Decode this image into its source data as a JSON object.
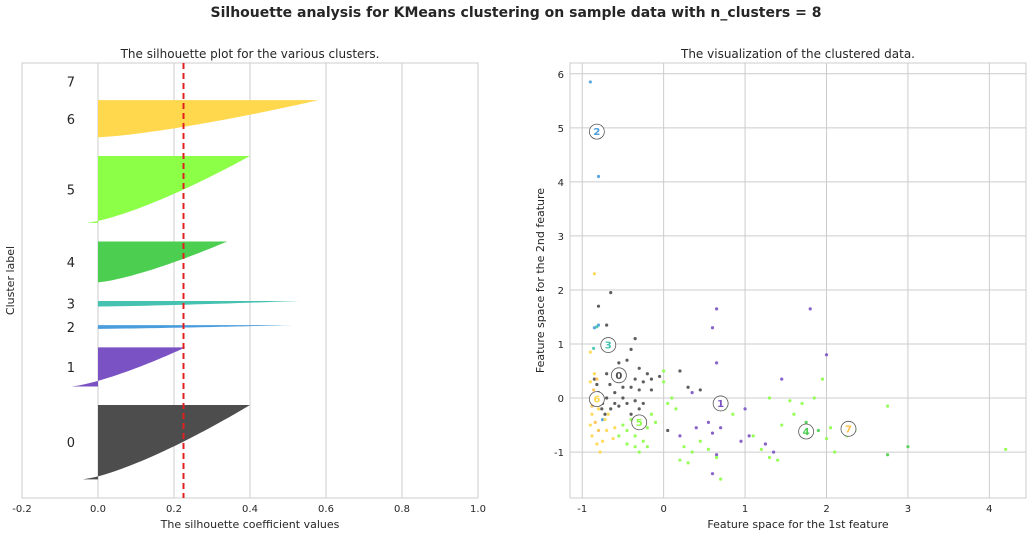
{
  "suptitle": "Silhouette analysis for KMeans clustering on sample data with n_clusters = 8",
  "chart_data": [
    {
      "type": "silhouette",
      "title": "The silhouette plot for the various clusters.",
      "xlabel": "The silhouette coefficient values",
      "ylabel": "Cluster label",
      "xlim": [
        -0.2,
        1.0
      ],
      "xticks": [
        -0.2,
        0.0,
        0.2,
        0.4,
        0.6,
        0.8,
        1.0
      ],
      "xtick_labels": [
        "-0.2",
        "0.0",
        "0.2",
        "0.4",
        "0.6",
        "0.8",
        "1.0"
      ],
      "average_silhouette": 0.225,
      "clusters": [
        {
          "label": "0",
          "color": "#4d4d4d",
          "max": 0.4,
          "min": -0.04,
          "size": 40
        },
        {
          "label": "1",
          "color": "#7b52c4",
          "max": 0.23,
          "min": -0.07,
          "size": 21
        },
        {
          "label": "2",
          "color": "#4a9ddd",
          "max": 0.51,
          "min": 0.0,
          "size": 2
        },
        {
          "label": "3",
          "color": "#47c2b1",
          "max": 0.53,
          "min": 0.0,
          "size": 3
        },
        {
          "label": "4",
          "color": "#4ccf50",
          "max": 0.34,
          "min": 0.0,
          "size": 22
        },
        {
          "label": "5",
          "color": "#8cff47",
          "max": 0.4,
          "min": -0.03,
          "size": 36
        },
        {
          "label": "6",
          "color": "#ffd84d",
          "max": 0.58,
          "min": 0.0,
          "size": 20
        },
        {
          "label": "7",
          "color": "#ffc04d",
          "max": 0.0,
          "min": 0.0,
          "size": 0
        }
      ]
    },
    {
      "type": "scatter",
      "title": "The visualization of the clustered data.",
      "xlabel": "Feature space for the 1st feature",
      "ylabel": "Feature space for the 2nd feature",
      "xlim": [
        -1.15,
        4.45
      ],
      "ylim": [
        -1.85,
        6.2
      ],
      "xticks": [
        -1,
        0,
        1,
        2,
        3,
        4
      ],
      "xtick_labels": [
        "-1",
        "0",
        "1",
        "2",
        "3",
        "4"
      ],
      "yticks": [
        -1,
        0,
        1,
        2,
        3,
        4,
        5,
        6
      ],
      "ytick_labels": [
        "-1",
        "0",
        "1",
        "2",
        "3",
        "4",
        "5",
        "6"
      ],
      "colors": [
        "#4d4d4d",
        "#7b52c4",
        "#4a9ddd",
        "#47c2b1",
        "#4ccf50",
        "#8cff47",
        "#ffd84d",
        "#ffc04d"
      ],
      "points": [
        [
          -0.9,
          5.85,
          2
        ],
        [
          -0.8,
          4.1,
          2
        ],
        [
          -0.85,
          1.3,
          2
        ],
        [
          -0.8,
          1.35,
          2
        ],
        [
          -0.75,
          -0.4,
          2
        ],
        [
          -0.82,
          1.32,
          3
        ],
        [
          -0.86,
          0.92,
          3
        ],
        [
          -0.75,
          1.0,
          3
        ],
        [
          -0.65,
          1.95,
          0
        ],
        [
          -0.8,
          1.7,
          0
        ],
        [
          -0.7,
          1.35,
          0
        ],
        [
          -0.35,
          1.1,
          0
        ],
        [
          -0.4,
          0.9,
          0
        ],
        [
          -0.45,
          0.7,
          0
        ],
        [
          -0.55,
          0.65,
          0
        ],
        [
          -0.6,
          0.5,
          0
        ],
        [
          -0.7,
          0.45,
          0
        ],
        [
          -0.3,
          0.55,
          0
        ],
        [
          -0.35,
          0.35,
          0
        ],
        [
          -0.2,
          0.45,
          0
        ],
        [
          -0.25,
          0.3,
          0
        ],
        [
          -0.15,
          0.35,
          0
        ],
        [
          -0.05,
          0.4,
          0
        ],
        [
          -0.3,
          0.15,
          0
        ],
        [
          -0.4,
          0.2,
          0
        ],
        [
          -0.5,
          0.2,
          0
        ],
        [
          -0.6,
          0.1,
          0
        ],
        [
          -0.7,
          0.0,
          0
        ],
        [
          -0.75,
          -0.1,
          0
        ],
        [
          -0.65,
          -0.2,
          0
        ],
        [
          -0.55,
          -0.15,
          0
        ],
        [
          -0.45,
          -0.1,
          0
        ],
        [
          -0.35,
          -0.05,
          0
        ],
        [
          -0.25,
          -0.1,
          0
        ],
        [
          -0.85,
          0.35,
          0
        ],
        [
          -0.82,
          0.25,
          0
        ],
        [
          -0.8,
          0.1,
          0
        ],
        [
          -0.76,
          -0.2,
          0
        ],
        [
          -0.66,
          0.25,
          0
        ],
        [
          -0.72,
          -0.3,
          0
        ],
        [
          -0.58,
          0.35,
          0
        ],
        [
          -0.5,
          0.0,
          0
        ],
        [
          -0.6,
          -0.1,
          0
        ],
        [
          -0.3,
          -0.2,
          0
        ],
        [
          -0.15,
          0.15,
          0
        ],
        [
          0.05,
          -0.6,
          0
        ],
        [
          0.2,
          0.5,
          0
        ],
        [
          0.3,
          0.2,
          0
        ],
        [
          0.45,
          0.15,
          0
        ],
        [
          -0.4,
          -0.3,
          0
        ],
        [
          0.65,
          1.65,
          1
        ],
        [
          0.6,
          1.3,
          1
        ],
        [
          0.65,
          0.65,
          1
        ],
        [
          0.35,
          0.1,
          1
        ],
        [
          0.55,
          -0.45,
          1
        ],
        [
          0.7,
          -0.55,
          1
        ],
        [
          0.6,
          -0.65,
          1
        ],
        [
          0.65,
          -1.05,
          1
        ],
        [
          0.6,
          -1.4,
          1
        ],
        [
          0.95,
          -0.8,
          1
        ],
        [
          1.0,
          -0.2,
          1
        ],
        [
          1.05,
          -0.7,
          1
        ],
        [
          1.25,
          -0.85,
          1
        ],
        [
          1.35,
          -1.0,
          1
        ],
        [
          1.45,
          0.35,
          1
        ],
        [
          1.8,
          1.65,
          1
        ],
        [
          2.0,
          0.8,
          1
        ],
        [
          0.2,
          -0.7,
          1
        ],
        [
          0.4,
          -0.55,
          1
        ],
        [
          1.75,
          -0.45,
          4
        ],
        [
          1.9,
          -0.6,
          4
        ],
        [
          2.75,
          -1.05,
          4
        ],
        [
          3.0,
          -0.9,
          4
        ],
        [
          -0.5,
          -0.5,
          5
        ],
        [
          -0.45,
          -0.6,
          5
        ],
        [
          -0.4,
          -0.4,
          5
        ],
        [
          -0.35,
          -0.7,
          5
        ],
        [
          -0.3,
          -0.5,
          5
        ],
        [
          -0.25,
          -0.4,
          5
        ],
        [
          -0.2,
          -0.55,
          5
        ],
        [
          -0.15,
          -0.3,
          5
        ],
        [
          -0.1,
          -0.45,
          5
        ],
        [
          -0.35,
          -0.9,
          5
        ],
        [
          -0.3,
          -1.0,
          5
        ],
        [
          -0.25,
          -0.8,
          5
        ],
        [
          -0.2,
          -0.9,
          5
        ],
        [
          -0.45,
          -0.85,
          5
        ],
        [
          -0.55,
          -0.7,
          5
        ],
        [
          0.0,
          0.5,
          5
        ],
        [
          0.0,
          0.3,
          5
        ],
        [
          0.05,
          -0.1,
          5
        ],
        [
          0.1,
          0.0,
          5
        ],
        [
          0.15,
          -0.2,
          5
        ],
        [
          0.25,
          -0.9,
          5
        ],
        [
          0.35,
          -1.0,
          5
        ],
        [
          0.45,
          -0.8,
          5
        ],
        [
          0.55,
          -0.95,
          5
        ],
        [
          0.65,
          -1.1,
          5
        ],
        [
          0.7,
          -1.5,
          5
        ],
        [
          0.2,
          -1.15,
          5
        ],
        [
          0.3,
          -1.2,
          5
        ],
        [
          0.75,
          -0.2,
          5
        ],
        [
          0.85,
          -0.3,
          5
        ],
        [
          1.1,
          -0.7,
          5
        ],
        [
          1.2,
          -0.95,
          5
        ],
        [
          1.3,
          -1.1,
          5
        ],
        [
          1.4,
          -1.15,
          5
        ],
        [
          1.45,
          -0.5,
          5
        ],
        [
          1.6,
          -0.3,
          5
        ],
        [
          1.3,
          0.0,
          5
        ],
        [
          1.55,
          -0.05,
          5
        ],
        [
          1.7,
          -0.1,
          5
        ],
        [
          2.0,
          -0.75,
          5
        ],
        [
          2.05,
          -0.55,
          5
        ],
        [
          2.25,
          -0.7,
          5
        ],
        [
          2.35,
          -0.6,
          5
        ],
        [
          2.75,
          -0.15,
          5
        ],
        [
          1.95,
          0.35,
          5
        ],
        [
          1.85,
          0.0,
          5
        ],
        [
          4.2,
          -0.95,
          5
        ],
        [
          2.1,
          -1.0,
          5
        ],
        [
          -0.85,
          2.3,
          6
        ],
        [
          -0.9,
          0.85,
          6
        ],
        [
          -0.85,
          0.0,
          6
        ],
        [
          -0.8,
          -0.2,
          6
        ],
        [
          -0.9,
          -0.5,
          6
        ],
        [
          -0.88,
          -0.7,
          6
        ],
        [
          -0.82,
          -0.85,
          6
        ],
        [
          -0.78,
          -1.0,
          6
        ],
        [
          -0.7,
          -0.6,
          6
        ],
        [
          -0.72,
          -0.4,
          6
        ],
        [
          -0.75,
          -0.8,
          6
        ],
        [
          -0.68,
          -0.3,
          6
        ],
        [
          -0.85,
          0.45,
          6
        ],
        [
          -0.9,
          0.3,
          6
        ],
        [
          -0.6,
          -0.55,
          6
        ],
        [
          -0.62,
          -0.75,
          6
        ],
        [
          -0.88,
          -0.3,
          6
        ],
        [
          -0.88,
          -0.15,
          7
        ],
        [
          -0.84,
          -0.45,
          7
        ],
        [
          -0.86,
          0.15,
          7
        ],
        [
          -0.8,
          -0.6,
          7
        ],
        [
          -0.82,
          0.35,
          7
        ]
      ],
      "centers": [
        {
          "label": "0",
          "x": -0.55,
          "y": 0.42
        },
        {
          "label": "1",
          "x": 0.7,
          "y": -0.1
        },
        {
          "label": "2",
          "x": -0.82,
          "y": 4.93
        },
        {
          "label": "3",
          "x": -0.68,
          "y": 0.98
        },
        {
          "label": "4",
          "x": 1.75,
          "y": -0.62
        },
        {
          "label": "5",
          "x": -0.3,
          "y": -0.45
        },
        {
          "label": "6",
          "x": -0.82,
          "y": -0.02
        },
        {
          "label": "7",
          "x": 2.27,
          "y": -0.57
        }
      ]
    }
  ]
}
